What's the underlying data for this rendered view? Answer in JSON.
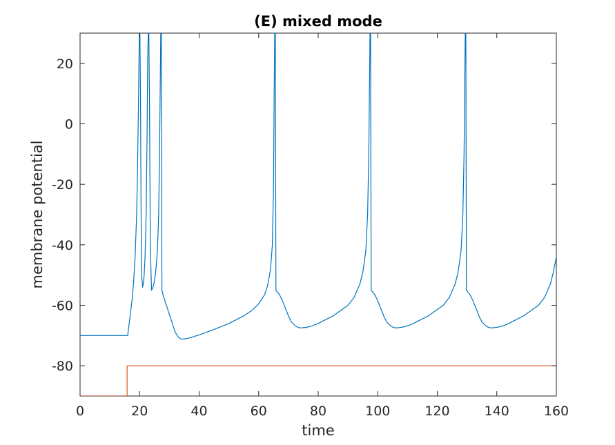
{
  "chart_data": {
    "type": "line",
    "title": "(E) mixed mode",
    "xlabel": "time",
    "ylabel": "membrane potential",
    "xlim": [
      0,
      160
    ],
    "ylim": [
      -90,
      30
    ],
    "grid": false,
    "xticks": [
      0,
      20,
      40,
      60,
      80,
      100,
      120,
      140,
      160
    ],
    "yticks": [
      -80,
      -60,
      -40,
      -20,
      0,
      20
    ],
    "series": [
      {
        "color": "#0072bd",
        "x": [
          0,
          16,
          16.5,
          17,
          17.5,
          18,
          18.5,
          19,
          19.3,
          19.6,
          19.9,
          20.1,
          20.3,
          20.5,
          20.7,
          21.0,
          21.4,
          21.8,
          22.2,
          22.5,
          22.7,
          22.9,
          23.1,
          23.3,
          23.6,
          24.0,
          24.5,
          25.0,
          25.5,
          26.0,
          26.4,
          26.7,
          26.9,
          27.1,
          27.3,
          27.5,
          28,
          29,
          30,
          31,
          32,
          33,
          34,
          36,
          40,
          45,
          50,
          55,
          58,
          60,
          62,
          63,
          64,
          64.6,
          65.0,
          65.2,
          65.4,
          65.6,
          65.8,
          66,
          67,
          68,
          69,
          70,
          71,
          72,
          73,
          74,
          76,
          78,
          80,
          85,
          90,
          92,
          94,
          95,
          96,
          96.6,
          97.0,
          97.2,
          97.4,
          97.6,
          97.8,
          98,
          99,
          100,
          101,
          102,
          103,
          104,
          105,
          106,
          108,
          110,
          112,
          117,
          122,
          124,
          126,
          127,
          128,
          128.6,
          129.0,
          129.2,
          129.4,
          129.6,
          129.8,
          130,
          131,
          132,
          133,
          134,
          135,
          136,
          137,
          138,
          140,
          142,
          144,
          149,
          154,
          156,
          158,
          159,
          160
        ],
        "y": [
          -70,
          -70,
          -66,
          -62,
          -58,
          -52,
          -44,
          -30,
          -15,
          5,
          30,
          30,
          10,
          -30,
          -50,
          -54,
          -52,
          -45,
          -30,
          -5,
          20,
          30,
          30,
          10,
          -40,
          -55,
          -54,
          -52,
          -48,
          -42,
          -30,
          -10,
          10,
          30,
          30,
          -55,
          -57,
          -60,
          -63,
          -66,
          -69,
          -70.5,
          -71.2,
          -71,
          -69.8,
          -68,
          -66,
          -63.5,
          -61.5,
          -59.5,
          -56.5,
          -53.5,
          -48,
          -40,
          -20,
          10,
          30,
          30,
          -55,
          -55.3,
          -56.5,
          -58.5,
          -61,
          -63.5,
          -65.5,
          -66.5,
          -67.2,
          -67.5,
          -67.3,
          -66.8,
          -66,
          -63.5,
          -60,
          -57.5,
          -53,
          -49,
          -42,
          -30,
          -10,
          10,
          30,
          30,
          -55,
          -55.3,
          -56.5,
          -58.5,
          -61,
          -63.5,
          -65.5,
          -66.5,
          -67.2,
          -67.5,
          -67.3,
          -66.8,
          -66,
          -63.5,
          -60,
          -57.5,
          -53,
          -49,
          -42,
          -30,
          -10,
          10,
          30,
          30,
          -55,
          -55.3,
          -56.5,
          -58.5,
          -61,
          -63.5,
          -65.5,
          -66.5,
          -67.2,
          -67.5,
          -67.3,
          -66.8,
          -66,
          -63.5,
          -60,
          -57.5,
          -53,
          -49,
          -44
        ]
      },
      {
        "color": "#d95319",
        "x": [
          0,
          15.8,
          15.8,
          160
        ],
        "y": [
          -90,
          -90,
          -80,
          -80
        ]
      }
    ]
  }
}
